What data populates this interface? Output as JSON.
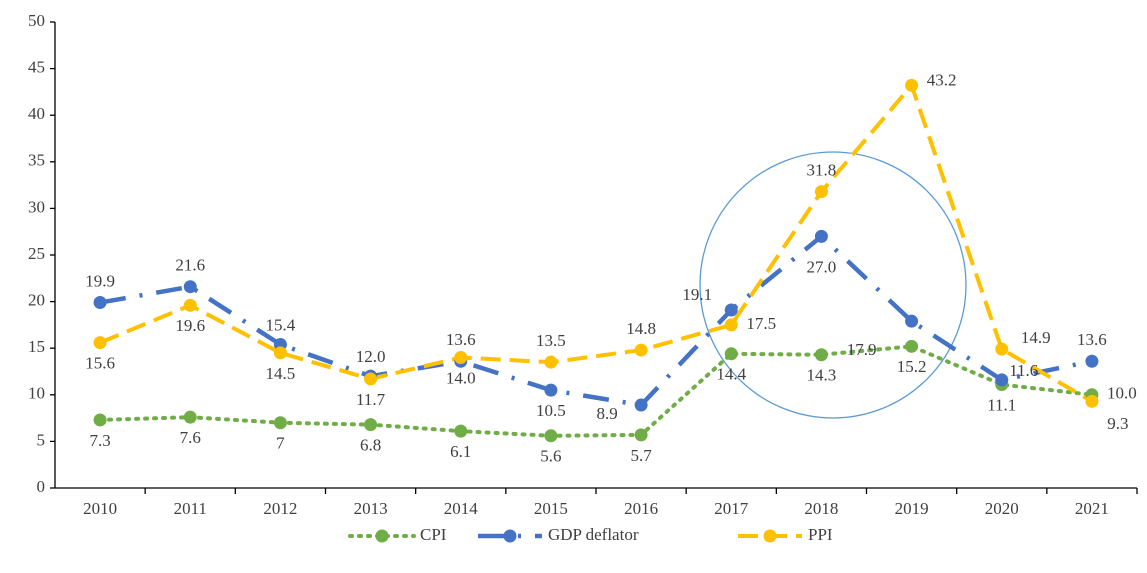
{
  "chart_data": {
    "type": "line",
    "categories": [
      "2010",
      "2011",
      "2012",
      "2013",
      "2014",
      "2015",
      "2016",
      "2017",
      "2018",
      "2019",
      "2020",
      "2021"
    ],
    "series": [
      {
        "name": "CPI",
        "color": "#70ad47",
        "values": [
          7.3,
          7.6,
          7,
          6.8,
          6.1,
          5.6,
          5.7,
          14.4,
          14.3,
          15.2,
          11.1,
          10.0
        ],
        "value_labels": [
          "7.3",
          "7.6",
          "7",
          "6.8",
          "6.1",
          "5.6",
          "5.7",
          "14.4",
          "14.3",
          "15.2",
          "11.1",
          "10.0"
        ]
      },
      {
        "name": "GDP deflator",
        "color": "#4472c4",
        "values": [
          19.9,
          21.6,
          15.4,
          12.0,
          13.6,
          10.5,
          8.9,
          19.1,
          27.0,
          17.9,
          11.6,
          13.6
        ],
        "value_labels": [
          "19.9",
          "21.6",
          "15.4",
          "12.0",
          "13.6",
          "10.5",
          "8.9",
          "19.1",
          "27.0",
          "17.9",
          "11.6",
          "13.6"
        ]
      },
      {
        "name": "PPI",
        "color": "#ffc000",
        "values": [
          15.6,
          19.6,
          14.5,
          11.7,
          14.0,
          13.5,
          14.8,
          17.5,
          31.8,
          43.2,
          14.9,
          9.3
        ],
        "value_labels": [
          "15.6",
          "19.6",
          "14.5",
          "11.7",
          "14.0",
          "13.5",
          "14.8",
          "17.5",
          "31.8",
          "43.2",
          "14.9",
          "9.3"
        ]
      }
    ],
    "ylim": [
      0,
      50
    ],
    "yticks": [
      0,
      5,
      10,
      15,
      20,
      25,
      30,
      35,
      40,
      45,
      50
    ],
    "legend": "bottom"
  }
}
